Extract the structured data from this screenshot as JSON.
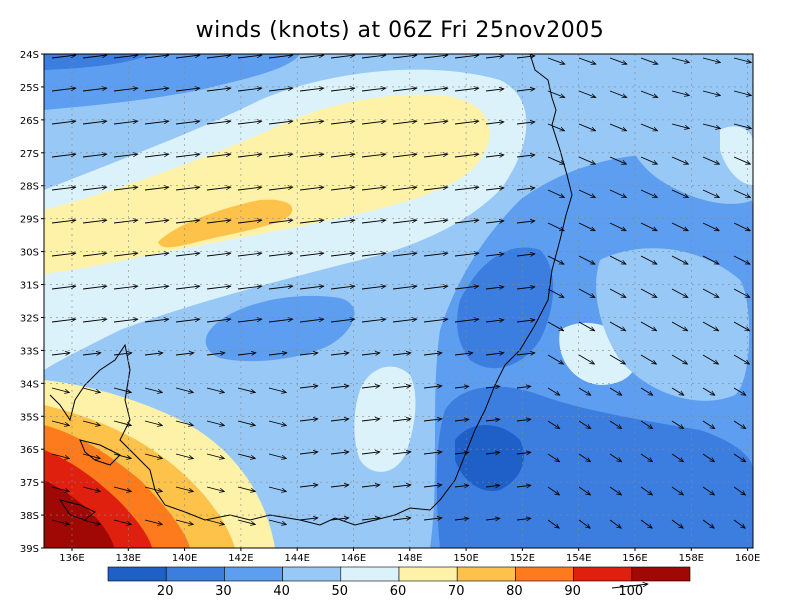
{
  "title": "winds (knots) at 06Z Fri 25nov2005",
  "lat_labels": [
    "24S",
    "25S",
    "26S",
    "27S",
    "28S",
    "29S",
    "30S",
    "31S",
    "32S",
    "33S",
    "34S",
    "35S",
    "36S",
    "37S",
    "38S",
    "39S"
  ],
  "lon_labels": [
    "136E",
    "138E",
    "140E",
    "142E",
    "144E",
    "146E",
    "148E",
    "150E",
    "152E",
    "154E",
    "156E",
    "158E",
    "160E"
  ],
  "colorbar": {
    "ticks": [
      "20",
      "30",
      "40",
      "50",
      "60",
      "70",
      "80",
      "90",
      "100"
    ],
    "colors": [
      "#1f5fc8",
      "#3c7ee0",
      "#5d9ef0",
      "#98c8f5",
      "#dcf2fb",
      "#fdf2a8",
      "#fdc24a",
      "#fd7b1c",
      "#e0200f",
      "#a00806"
    ],
    "reference_vector_label": "100"
  },
  "palette": {
    "c20": "#1f5fc8",
    "c30": "#3c7ee0",
    "c40": "#5d9ef0",
    "c50": "#98c8f5",
    "c60": "#dcf2fb",
    "c70": "#fdf2a8",
    "c80": "#fdc24a",
    "c90": "#fd7b1c",
    "c100": "#e0200f",
    "c110": "#a00806"
  }
}
